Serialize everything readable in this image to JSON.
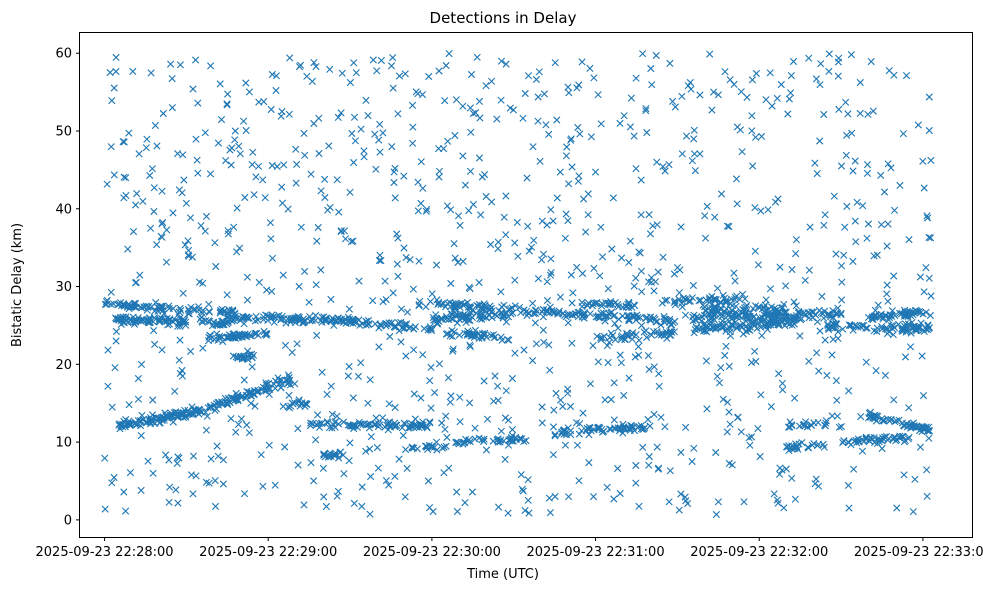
{
  "chart_data": {
    "type": "scatter",
    "title": "Detections in Delay",
    "xlabel": "Time (UTC)",
    "ylabel": "Bistatic Delay (km)",
    "x_axis": {
      "type": "time",
      "start": "2025-09-23 22:28:00",
      "end": "2025-09-23 22:33:00",
      "tick_labels": [
        "2025-09-23 22:28:00",
        "2025-09-23 22:29:00",
        "2025-09-23 22:30:00",
        "2025-09-23 22:31:00",
        "2025-09-23 22:32:00",
        "2025-09-23 22:33:00"
      ],
      "xlim": [
        "2025-09-23 22:27:51",
        "2025-09-23 22:33:18"
      ]
    },
    "y_axis": {
      "ticks": [
        0,
        10,
        20,
        30,
        40,
        50,
        60
      ],
      "ylim": [
        -2.2,
        62.6
      ]
    },
    "grid": false,
    "legend": false,
    "marker": "x",
    "color": "#1f77b4",
    "series": [
      {
        "kind": "track",
        "x": [
          "22:28:04",
          "22:28:35",
          "22:29:08"
        ],
        "y": [
          12.0,
          14.0,
          18.0
        ],
        "n": 180,
        "jitter": 0.45
      },
      {
        "kind": "track",
        "x": [
          "22:28:04",
          "22:28:30"
        ],
        "y": [
          25.8,
          25.5
        ],
        "n": 80,
        "jitter": 0.35
      },
      {
        "kind": "track",
        "x": [
          "22:28:00",
          "22:28:28"
        ],
        "y": [
          27.8,
          27.0
        ],
        "n": 50,
        "jitter": 0.35
      },
      {
        "kind": "track",
        "x": [
          "22:28:30",
          "22:28:48"
        ],
        "y": [
          27.0,
          26.8
        ],
        "n": 30,
        "jitter": 0.4
      },
      {
        "kind": "track",
        "x": [
          "22:28:35",
          "22:28:45"
        ],
        "y": [
          25.5,
          25.2
        ],
        "n": 20,
        "jitter": 0.35
      },
      {
        "kind": "track",
        "x": [
          "22:28:38",
          "22:29:00"
        ],
        "y": [
          23.3,
          24.0
        ],
        "n": 50,
        "jitter": 0.3
      },
      {
        "kind": "track",
        "x": [
          "22:28:47",
          "22:28:55"
        ],
        "y": [
          20.8,
          21.0
        ],
        "n": 20,
        "jitter": 0.3
      },
      {
        "kind": "track",
        "x": [
          "22:28:45",
          "22:29:32"
        ],
        "y": [
          26.0,
          25.5
        ],
        "n": 100,
        "jitter": 0.4
      },
      {
        "kind": "track",
        "x": [
          "22:29:30",
          "22:30:00"
        ],
        "y": [
          25.5,
          24.5
        ],
        "n": 50,
        "jitter": 0.4
      },
      {
        "kind": "track",
        "x": [
          "22:29:15",
          "22:30:00"
        ],
        "y": [
          12.3,
          12.1
        ],
        "n": 80,
        "jitter": 0.3
      },
      {
        "kind": "track",
        "x": [
          "22:29:20",
          "22:29:28"
        ],
        "y": [
          8.3,
          8.5
        ],
        "n": 15,
        "jitter": 0.3
      },
      {
        "kind": "track",
        "x": [
          "22:29:05",
          "22:29:15"
        ],
        "y": [
          14.5,
          15.0
        ],
        "n": 15,
        "jitter": 0.3
      },
      {
        "kind": "track",
        "x": [
          "22:29:50",
          "22:30:05"
        ],
        "y": [
          9.3,
          9.5
        ],
        "n": 20,
        "jitter": 0.3
      },
      {
        "kind": "track",
        "x": [
          "22:30:08",
          "22:30:35"
        ],
        "y": [
          10.0,
          10.5
        ],
        "n": 40,
        "jitter": 0.3
      },
      {
        "kind": "track",
        "x": [
          "22:29:55",
          "22:30:40"
        ],
        "y": [
          27.8,
          26.8
        ],
        "n": 70,
        "jitter": 0.4
      },
      {
        "kind": "track",
        "x": [
          "22:30:00",
          "22:30:30"
        ],
        "y": [
          25.8,
          26.5
        ],
        "n": 60,
        "jitter": 0.4
      },
      {
        "kind": "track",
        "x": [
          "22:30:05",
          "22:30:30"
        ],
        "y": [
          24.0,
          23.5
        ],
        "n": 40,
        "jitter": 0.4
      },
      {
        "kind": "track",
        "x": [
          "22:30:40",
          "22:31:30"
        ],
        "y": [
          26.8,
          25.5
        ],
        "n": 90,
        "jitter": 0.4
      },
      {
        "kind": "track",
        "x": [
          "22:30:55",
          "22:31:15"
        ],
        "y": [
          27.8,
          27.6
        ],
        "n": 30,
        "jitter": 0.3
      },
      {
        "kind": "track",
        "x": [
          "22:30:45",
          "22:31:20"
        ],
        "y": [
          11.2,
          12.0
        ],
        "n": 60,
        "jitter": 0.3
      },
      {
        "kind": "track",
        "x": [
          "22:31:00",
          "22:31:30"
        ],
        "y": [
          23.5,
          24.0
        ],
        "n": 40,
        "jitter": 0.4
      },
      {
        "kind": "track",
        "x": [
          "22:31:25",
          "22:31:55"
        ],
        "y": [
          28.0,
          28.5
        ],
        "n": 40,
        "jitter": 0.4
      },
      {
        "kind": "track",
        "x": [
          "22:31:35",
          "22:32:30"
        ],
        "y": [
          26.0,
          26.5
        ],
        "n": 110,
        "jitter": 0.45
      },
      {
        "kind": "track",
        "x": [
          "22:31:35",
          "22:32:15"
        ],
        "y": [
          24.5,
          25.5
        ],
        "n": 90,
        "jitter": 0.5
      },
      {
        "kind": "track",
        "x": [
          "22:31:40",
          "22:32:10"
        ],
        "y": [
          27.2,
          27.0
        ],
        "n": 50,
        "jitter": 0.4
      },
      {
        "kind": "track",
        "x": [
          "22:32:10",
          "22:32:25"
        ],
        "y": [
          9.4,
          9.6
        ],
        "n": 20,
        "jitter": 0.3
      },
      {
        "kind": "track",
        "x": [
          "22:32:10",
          "22:32:25"
        ],
        "y": [
          12.2,
          12.4
        ],
        "n": 20,
        "jitter": 0.3
      },
      {
        "kind": "track",
        "x": [
          "22:32:25",
          "22:32:40"
        ],
        "y": [
          25.0,
          24.8
        ],
        "n": 25,
        "jitter": 0.4
      },
      {
        "kind": "track",
        "x": [
          "22:32:40",
          "22:33:03"
        ],
        "y": [
          26.0,
          26.8
        ],
        "n": 50,
        "jitter": 0.4
      },
      {
        "kind": "track",
        "x": [
          "22:32:42",
          "22:33:03"
        ],
        "y": [
          24.5,
          24.8
        ],
        "n": 50,
        "jitter": 0.45
      },
      {
        "kind": "track",
        "x": [
          "22:32:40",
          "22:33:03"
        ],
        "y": [
          13.5,
          11.5
        ],
        "n": 60,
        "jitter": 0.3
      },
      {
        "kind": "track",
        "x": [
          "22:32:30",
          "22:32:55"
        ],
        "y": [
          10.0,
          10.5
        ],
        "n": 45,
        "jitter": 0.3
      },
      {
        "kind": "noise",
        "x_range": [
          "22:28:00",
          "22:33:03"
        ],
        "y_range": [
          0.5,
          60
        ],
        "n": 1050
      }
    ]
  }
}
